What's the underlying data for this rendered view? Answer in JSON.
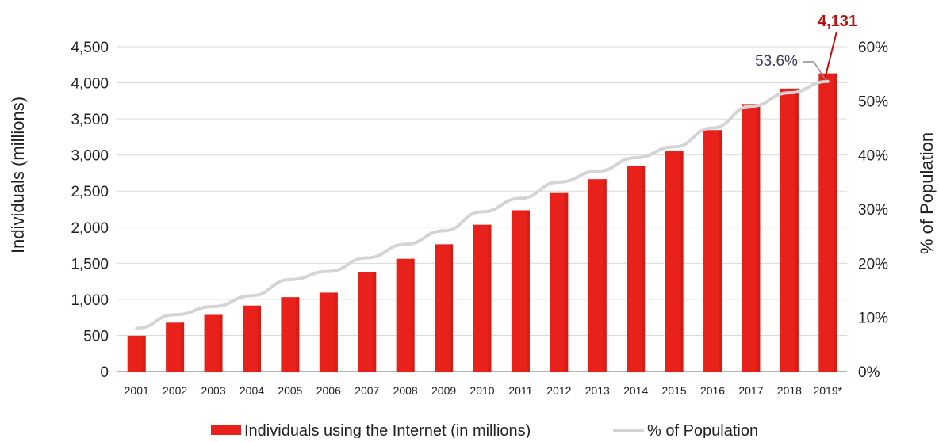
{
  "chart_data": {
    "type": "bar",
    "categories": [
      "2001",
      "2002",
      "2003",
      "2004",
      "2005",
      "2006",
      "2007",
      "2008",
      "2009",
      "2010",
      "2011",
      "2012",
      "2013",
      "2014",
      "2015",
      "2016",
      "2017",
      "2018",
      "2019*"
    ],
    "series": [
      {
        "name": "Individuals using the Internet (in millions)",
        "type": "bar",
        "axis": "left",
        "color": "#e8221a",
        "values": [
          495,
          677,
          785,
          914,
          1030,
          1093,
          1373,
          1562,
          1763,
          2034,
          2234,
          2473,
          2665,
          2848,
          3060,
          3345,
          3706,
          3920,
          4131
        ]
      },
      {
        "name": "% of Population",
        "type": "line",
        "axis": "right",
        "color": "#d4d4d8",
        "values": [
          8,
          10.5,
          12,
          14,
          17,
          18.5,
          21,
          23.5,
          26,
          29.5,
          32,
          35,
          37,
          39.5,
          41.5,
          45,
          49,
          51.5,
          53.6
        ]
      }
    ],
    "ylabel": "Individuals (millions)",
    "y2label": "% of Population",
    "ylim": [
      0,
      4500
    ],
    "y2lim": [
      0,
      60
    ],
    "yticks": [
      "0",
      "500",
      "1,000",
      "1,500",
      "2,000",
      "2,500",
      "3,000",
      "3,500",
      "4,000",
      "4,500"
    ],
    "y2ticks": [
      "0%",
      "10%",
      "20%",
      "30%",
      "40%",
      "50%",
      "60%"
    ],
    "annotations": {
      "last_bar_value": "4,131",
      "last_bar_color": "#b5120e",
      "last_line_value": "53.6%",
      "last_line_color": "#3a3a5a"
    },
    "grid": true,
    "legend_position": "bottom-center"
  }
}
